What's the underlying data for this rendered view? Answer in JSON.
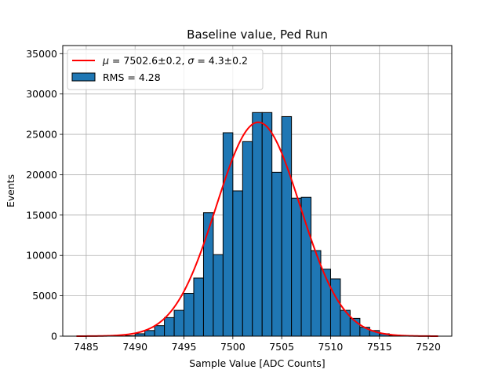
{
  "chart_data": {
    "type": "bar",
    "title": "Baseline value, Ped Run",
    "xlabel": "Sample Value [ADC Counts]",
    "ylabel": "Events",
    "xlim": [
      7482.6,
      7522.4
    ],
    "ylim": [
      0,
      36000
    ],
    "xticks": [
      7485,
      7490,
      7495,
      7500,
      7505,
      7510,
      7515,
      7520
    ],
    "yticks": [
      0,
      5000,
      10000,
      15000,
      20000,
      25000,
      30000,
      35000
    ],
    "grid": true,
    "legend_position": "top-left",
    "histogram": {
      "name": "RMS = 4.28",
      "color": "#1f77b4",
      "edge_color": "#000000",
      "bin_edges": [
        7484,
        7485,
        7486,
        7487,
        7488,
        7489,
        7490,
        7491,
        7492,
        7493,
        7494,
        7495,
        7496,
        7497,
        7498,
        7499,
        7500,
        7501,
        7502,
        7503,
        7504,
        7505,
        7506,
        7507,
        7508,
        7509,
        7510,
        7511,
        7512,
        7513,
        7514,
        7515,
        7516,
        7517,
        7518,
        7519,
        7520,
        7521
      ],
      "counts": [
        0,
        0,
        0,
        0,
        0,
        50,
        300,
        700,
        1300,
        2300,
        3200,
        5300,
        7200,
        15300,
        10100,
        25200,
        18000,
        24100,
        27700,
        27700,
        20300,
        27200,
        17100,
        17200,
        10600,
        8300,
        7100,
        3200,
        2200,
        1100,
        700,
        300,
        100,
        0,
        0,
        0,
        0
      ]
    },
    "fit": {
      "name": "μ = 7502.6±0.2, σ = 4.3±0.2",
      "label_mu": "μ",
      "label_mu_value": " = 7502.6±0.2, ",
      "label_sigma": "σ",
      "label_sigma_value": " = 4.3±0.2",
      "mu": 7502.6,
      "sigma": 4.3,
      "amplitude": 26500,
      "x_range": [
        7484,
        7521
      ],
      "color": "#ff0000"
    }
  }
}
